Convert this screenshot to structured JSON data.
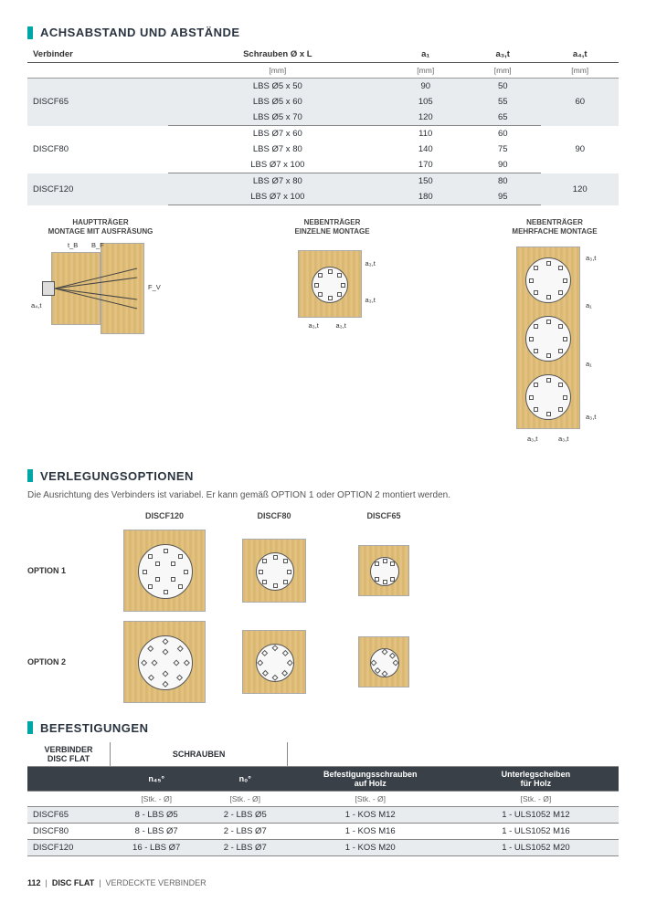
{
  "colors": {
    "accent": "#00a6a6",
    "wood": "#d9b56a",
    "border": "#888",
    "header_dark": "#3a4048"
  },
  "section1": {
    "title": "ACHSABSTAND UND ABSTÄNDE",
    "headers": [
      "Verbinder",
      "Schrauben Ø x L",
      "a₁",
      "a₃,t",
      "a₄,t"
    ],
    "units": [
      "",
      "[mm]",
      "[mm]",
      "[mm]",
      "[mm]"
    ],
    "rows": [
      {
        "shade": true,
        "v": "DISCF65",
        "screws": [
          "LBS Ø5 x 50",
          "LBS Ø5 x 60",
          "LBS Ø5 x 70"
        ],
        "a1": [
          "90",
          "105",
          "120"
        ],
        "a3": [
          "50",
          "55",
          "65"
        ],
        "a4": "60"
      },
      {
        "shade": false,
        "v": "DISCF80",
        "screws": [
          "LBS Ø7 x 60",
          "LBS Ø7 x 80",
          "LBS Ø7 x 100"
        ],
        "a1": [
          "110",
          "140",
          "170"
        ],
        "a3": [
          "60",
          "75",
          "90"
        ],
        "a4": "90"
      },
      {
        "shade": true,
        "v": "DISCF120",
        "screws": [
          "LBS Ø7 x 80",
          "LBS Ø7 x 100"
        ],
        "a1": [
          "150",
          "180"
        ],
        "a3": [
          "80",
          "95"
        ],
        "a4": "120"
      }
    ],
    "diag_labels": [
      "HAUPTTRÄGER\nMONTAGE MIT AUSFRÄSUNG",
      "NEBENTRÄGER\nEINZELNE MONTAGE",
      "NEBENTRÄGER\nMEHRFACHE MONTAGE"
    ],
    "dim_labels": {
      "tB": "t_B",
      "BF": "B_F",
      "Fv": "F_V",
      "a4t": "a₄,t",
      "a3t": "a₃,t",
      "a1": "a₁"
    }
  },
  "section2": {
    "title": "VERLEGUNGSOPTIONEN",
    "sub": "Die Ausrichtung des Verbinders ist variabel. Er kann gemäß OPTION 1 oder OPTION 2 montiert werden.",
    "col_heads": [
      "DISCF120",
      "DISCF80",
      "DISCF65"
    ],
    "row_labels": [
      "OPTION 1",
      "OPTION 2"
    ]
  },
  "section3": {
    "title": "BEFESTIGUNGEN",
    "group_heads": [
      "VERBINDER\nDISC FLAT",
      "SCHRAUBEN",
      "",
      ""
    ],
    "headers": [
      "",
      "n₄₅°",
      "n₀°",
      "Befestigungsschrauben\nauf Holz",
      "Unterlegscheiben\nfür Holz"
    ],
    "units": [
      "",
      "[Stk. - Ø]",
      "[Stk. - Ø]",
      "[Stk. - Ø]",
      "[Stk. - Ø]"
    ],
    "rows": [
      {
        "shade": true,
        "cells": [
          "DISCF65",
          "8 - LBS Ø5",
          "2 - LBS Ø5",
          "1 - KOS M12",
          "1 - ULS1052 M12"
        ]
      },
      {
        "shade": false,
        "cells": [
          "DISCF80",
          "8 - LBS Ø7",
          "2 - LBS Ø7",
          "1 - KOS M16",
          "1 - ULS1052 M16"
        ]
      },
      {
        "shade": true,
        "cells": [
          "DISCF120",
          "16 - LBS Ø7",
          "2 - LBS Ø7",
          "1 - KOS M20",
          "1 - ULS1052 M20"
        ]
      }
    ]
  },
  "footer": {
    "page": "112",
    "product": "DISC FLAT",
    "category": "VERDECKTE VERBINDER"
  }
}
